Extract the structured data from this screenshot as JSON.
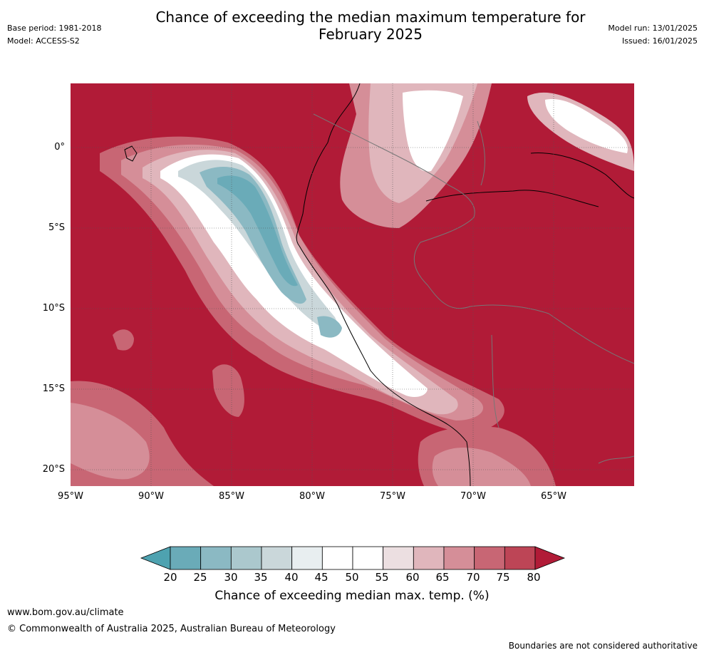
{
  "title": "Chance of exceeding the median maximum temperature for February 2025",
  "title_lines": [
    "Chance of exceeding the median maximum temperature for",
    "February 2025"
  ],
  "meta_left": {
    "base_period": "Base period: 1981-2018",
    "model": "Model: ACCESS-S2"
  },
  "meta_right": {
    "model_run": "Model run: 13/01/2025",
    "issued": "Issued: 16/01/2025"
  },
  "map": {
    "lat_labels": [
      "0°",
      "5°S",
      "10°S",
      "15°S",
      "20°S"
    ],
    "lon_labels": [
      "95°W",
      "90°W",
      "85°W",
      "80°W",
      "75°W",
      "70°W",
      "65°W"
    ],
    "background_color": "#b11b37"
  },
  "colorbar": {
    "ticks": [
      "20",
      "25",
      "30",
      "35",
      "40",
      "45",
      "50",
      "55",
      "60",
      "65",
      "70",
      "75",
      "80"
    ],
    "colors": [
      "#4ea2b0",
      "#6aabb8",
      "#8bb9c3",
      "#abc8cd",
      "#cad7da",
      "#e8eef0",
      "#ffffff",
      "#ffffff",
      "#ecdfe1",
      "#e0b6bc",
      "#d58e98",
      "#c86674",
      "#bd4556",
      "#b11b37"
    ],
    "label": "Chance of exceeding median max. temp. (%)"
  },
  "footer": {
    "url": "www.bom.gov.au/climate",
    "copyright": "© Commonwealth of Australia 2025, Australian Bureau of Meteorology",
    "note": "Boundaries are not considered authoritative"
  }
}
